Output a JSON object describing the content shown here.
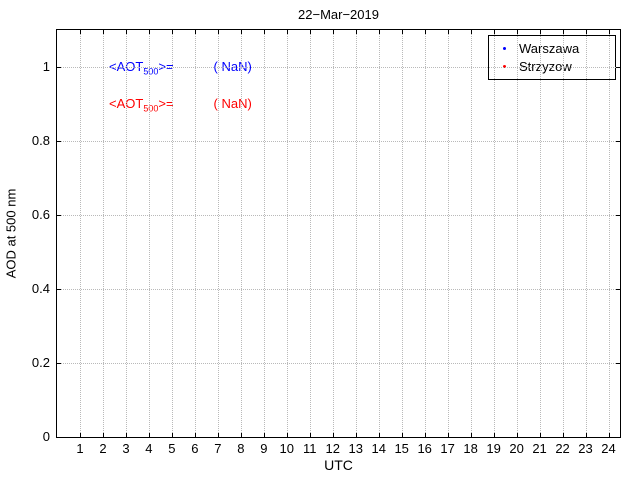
{
  "chart_data": {
    "type": "scatter",
    "title": "22−Mar−2019",
    "xlabel": "UTC",
    "ylabel": "AOD at 500 nm",
    "xlim": [
      0,
      24.5
    ],
    "ylim": [
      0,
      1.1
    ],
    "grid": true,
    "x_ticks": [
      1,
      2,
      3,
      4,
      5,
      6,
      7,
      8,
      9,
      10,
      11,
      12,
      13,
      14,
      15,
      16,
      17,
      18,
      19,
      20,
      21,
      22,
      23,
      24
    ],
    "x_tick_labels": [
      "1",
      "2",
      "3",
      "4",
      "5",
      "6",
      "7",
      "8",
      "9",
      "10",
      "11",
      "12",
      "13",
      "14",
      "15",
      "16",
      "17",
      "18",
      "19",
      "20",
      "21",
      "22",
      "23",
      "24"
    ],
    "y_ticks": [
      0,
      0.2,
      0.4,
      0.6,
      0.8,
      1
    ],
    "y_tick_labels": [
      "0",
      "0.2",
      "0.4",
      "0.6",
      "0.8",
      "1"
    ],
    "legend": {
      "position": "top-right",
      "items": [
        {
          "label": "Warszawa",
          "color": "#0000ff",
          "marker": "point"
        },
        {
          "label": "Strzyzow",
          "color": "#ff0000",
          "marker": "point"
        }
      ]
    },
    "series": [
      {
        "name": "Warszawa",
        "color": "#0000ff",
        "x": [],
        "y": []
      },
      {
        "name": "Strzyzow",
        "color": "#ff0000",
        "x": [],
        "y": []
      }
    ],
    "annotations": [
      {
        "color": "#0000ff",
        "prefix": "<AOT",
        "sub": "500",
        "eq": ">=",
        "value": "( NaN)"
      },
      {
        "color": "#ff0000",
        "prefix": "<AOT",
        "sub": "500",
        "eq": ">=",
        "value": "( NaN)"
      }
    ]
  }
}
